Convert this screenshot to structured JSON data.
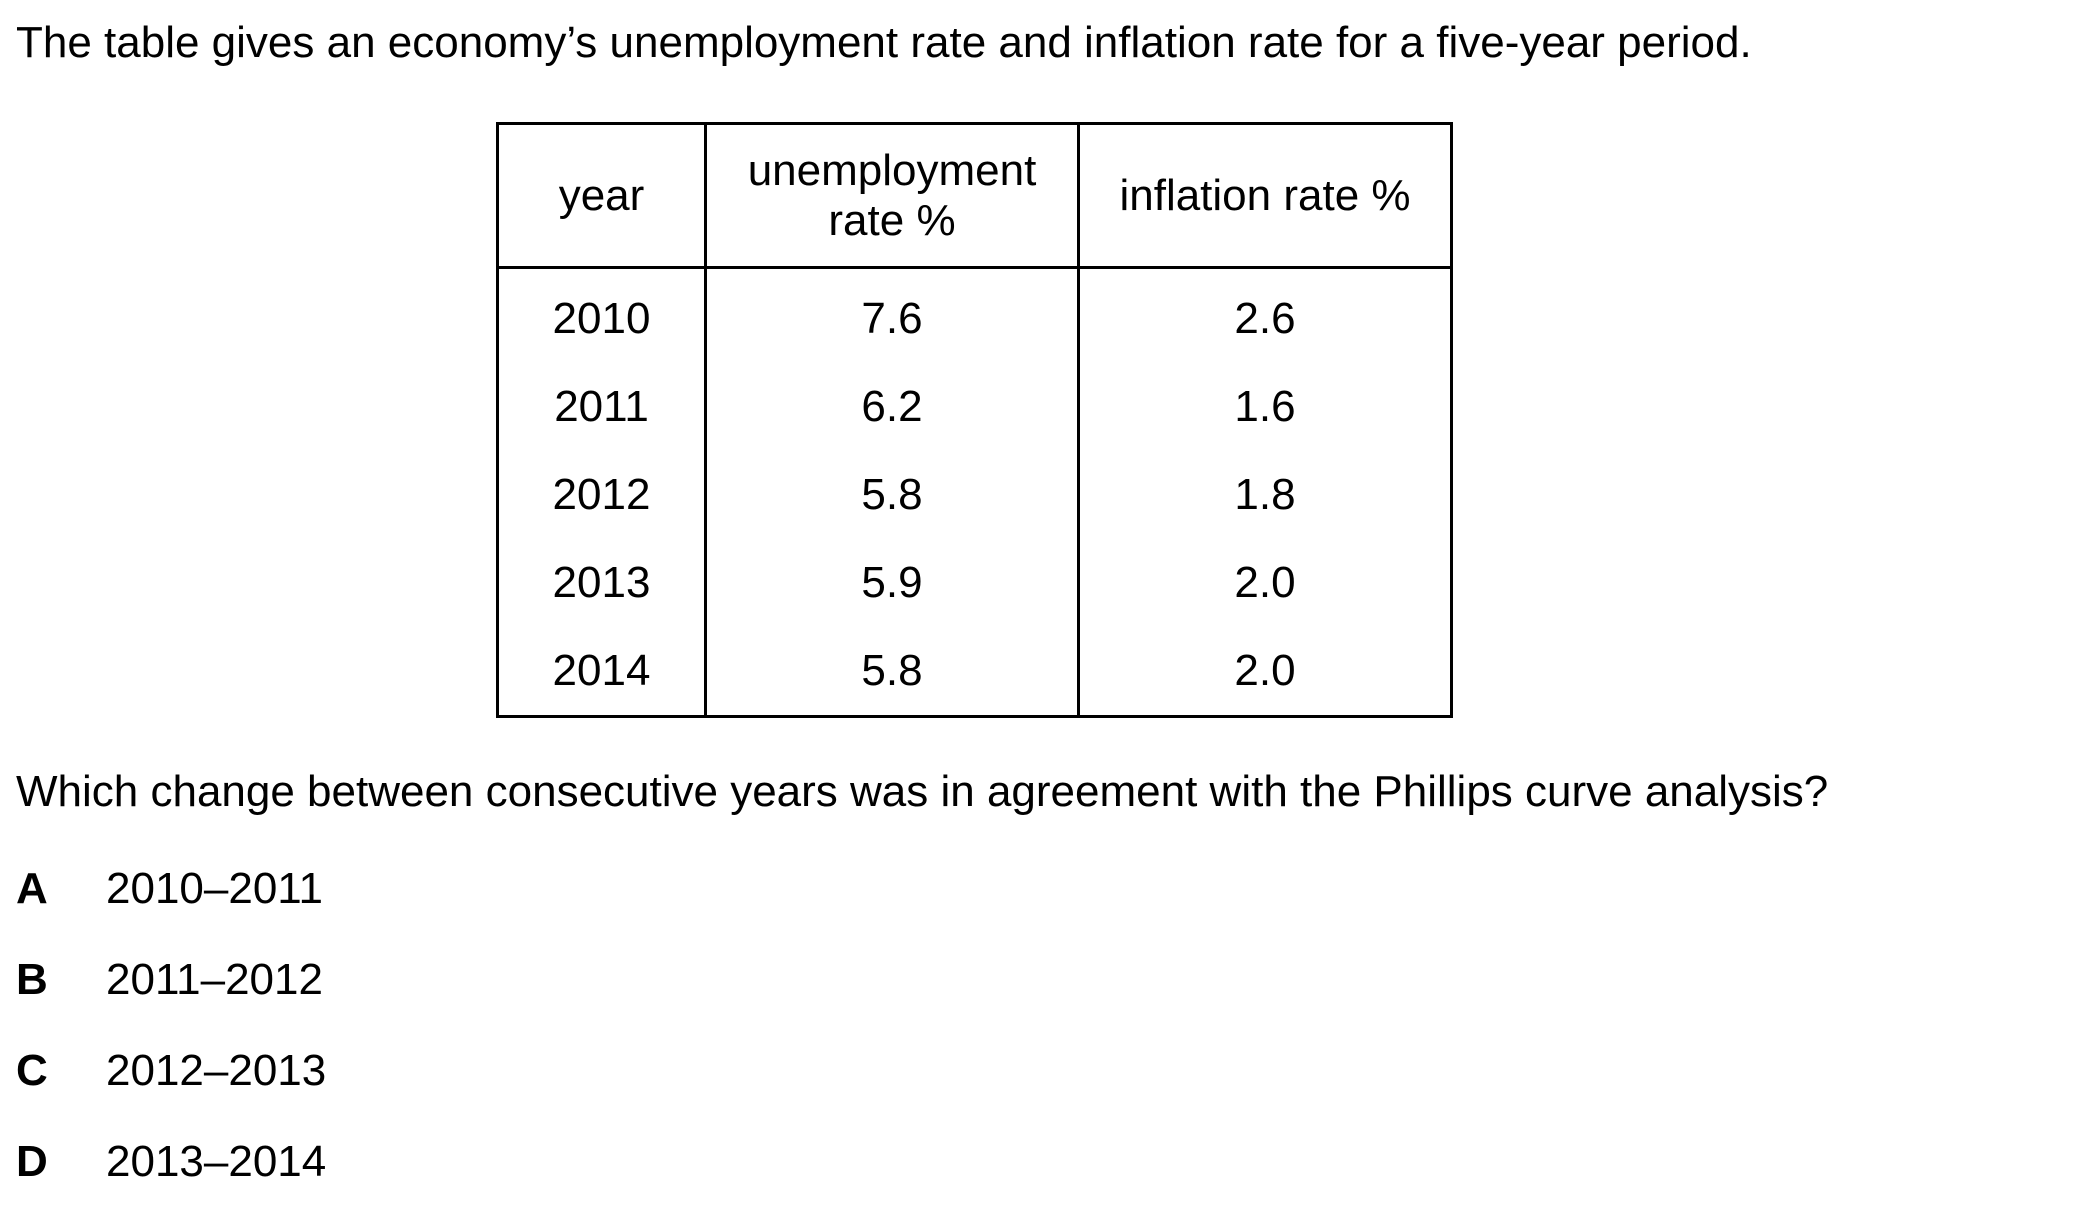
{
  "intro": "The table gives an economy’s unemployment rate and inflation rate for a five-year period.",
  "table": {
    "headers": [
      "year",
      "unemployment rate %",
      "inflation rate %"
    ],
    "header_lines": {
      "unemployment_line1": "unemployment",
      "unemployment_line2": "rate %"
    },
    "rows": [
      [
        "2010",
        "7.6",
        "2.6"
      ],
      [
        "2011",
        "6.2",
        "1.6"
      ],
      [
        "2012",
        "5.8",
        "1.8"
      ],
      [
        "2013",
        "5.9",
        "2.0"
      ],
      [
        "2014",
        "5.8",
        "2.0"
      ]
    ]
  },
  "question": "Which change between consecutive years was in agreement with the Phillips curve analysis?",
  "options": [
    {
      "letter": "A",
      "text": "2010–2011"
    },
    {
      "letter": "B",
      "text": "2011–2012"
    },
    {
      "letter": "C",
      "text": "2012–2013"
    },
    {
      "letter": "D",
      "text": "2013–2014"
    }
  ]
}
